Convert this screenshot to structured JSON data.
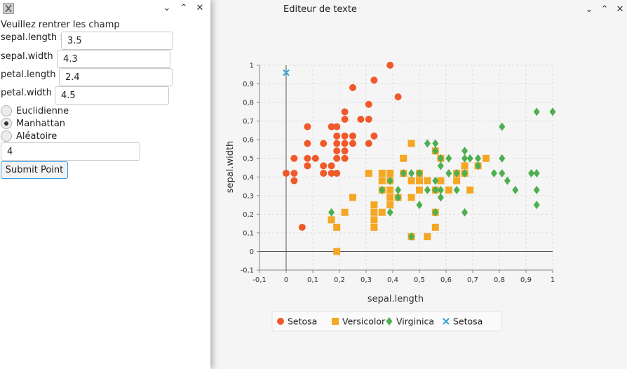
{
  "right_window": {
    "title": "Editeur de texte",
    "controls": {
      "minimize": "⌄",
      "maximize": "⌃",
      "close": "✕"
    }
  },
  "left_window": {
    "controls": {
      "minimize": "⌄",
      "maximize": "⌃",
      "close": "✕"
    },
    "prompt": "Veuillez rentrer les champ",
    "fields": [
      {
        "label": "sepal.length :",
        "value": "3.5"
      },
      {
        "label": "sepal.width :",
        "value": "4.3"
      },
      {
        "label": "petal.length :",
        "value": "2.4"
      },
      {
        "label": "petal.width :",
        "value": "4.5"
      }
    ],
    "distance_options": [
      {
        "label": "Euclidienne",
        "checked": false
      },
      {
        "label": "Manhattan",
        "checked": true
      },
      {
        "label": "Aléatoire",
        "checked": false
      }
    ],
    "k_value": "4",
    "submit_label": "Submit Point"
  },
  "chart_data": {
    "type": "scatter",
    "xlabel": "sepal.length",
    "ylabel": "sepal.width",
    "xlim": [
      -0.1,
      1.0
    ],
    "ylim": [
      -0.1,
      1.0
    ],
    "x_ticks": [
      "-0,1",
      "0",
      "0,1",
      "0,2",
      "0,3",
      "0,4",
      "0,5",
      "0,6",
      "0,7",
      "0,8",
      "0,9",
      "1"
    ],
    "y_ticks": [
      "-0,1",
      "0",
      "0,1",
      "0,2",
      "0,3",
      "0,4",
      "0,5",
      "0,6",
      "0,7",
      "0,8",
      "0,9",
      "1"
    ],
    "grid": true,
    "legend_position": "bottom",
    "series": [
      {
        "name": "Setosa",
        "marker": "circle",
        "color": "#f0592a",
        "points": [
          [
            0.0,
            0.42
          ],
          [
            0.03,
            0.42
          ],
          [
            0.03,
            0.38
          ],
          [
            0.03,
            0.5
          ],
          [
            0.06,
            0.13
          ],
          [
            0.08,
            0.67
          ],
          [
            0.08,
            0.58
          ],
          [
            0.08,
            0.5
          ],
          [
            0.08,
            0.46
          ],
          [
            0.11,
            0.5
          ],
          [
            0.14,
            0.58
          ],
          [
            0.14,
            0.46
          ],
          [
            0.14,
            0.42
          ],
          [
            0.17,
            0.67
          ],
          [
            0.17,
            0.46
          ],
          [
            0.17,
            0.42
          ],
          [
            0.19,
            0.67
          ],
          [
            0.19,
            0.62
          ],
          [
            0.19,
            0.58
          ],
          [
            0.19,
            0.54
          ],
          [
            0.19,
            0.5
          ],
          [
            0.19,
            0.42
          ],
          [
            0.22,
            0.75
          ],
          [
            0.22,
            0.71
          ],
          [
            0.22,
            0.62
          ],
          [
            0.22,
            0.58
          ],
          [
            0.22,
            0.54
          ],
          [
            0.22,
            0.5
          ],
          [
            0.25,
            0.88
          ],
          [
            0.25,
            0.62
          ],
          [
            0.25,
            0.58
          ],
          [
            0.28,
            0.71
          ],
          [
            0.31,
            0.79
          ],
          [
            0.31,
            0.71
          ],
          [
            0.31,
            0.58
          ],
          [
            0.33,
            0.92
          ],
          [
            0.33,
            0.62
          ],
          [
            0.39,
            1.0
          ],
          [
            0.42,
            0.83
          ]
        ]
      },
      {
        "name": "Versicolor",
        "marker": "square",
        "color": "#f5a623",
        "points": [
          [
            0.17,
            0.17
          ],
          [
            0.19,
            0.13
          ],
          [
            0.19,
            0.0
          ],
          [
            0.22,
            0.21
          ],
          [
            0.25,
            0.29
          ],
          [
            0.31,
            0.42
          ],
          [
            0.33,
            0.25
          ],
          [
            0.33,
            0.21
          ],
          [
            0.33,
            0.17
          ],
          [
            0.33,
            0.13
          ],
          [
            0.36,
            0.42
          ],
          [
            0.36,
            0.38
          ],
          [
            0.36,
            0.33
          ],
          [
            0.36,
            0.21
          ],
          [
            0.39,
            0.42
          ],
          [
            0.39,
            0.38
          ],
          [
            0.39,
            0.33
          ],
          [
            0.39,
            0.29
          ],
          [
            0.39,
            0.25
          ],
          [
            0.42,
            0.29
          ],
          [
            0.44,
            0.5
          ],
          [
            0.44,
            0.42
          ],
          [
            0.47,
            0.58
          ],
          [
            0.47,
            0.38
          ],
          [
            0.47,
            0.29
          ],
          [
            0.47,
            0.08
          ],
          [
            0.5,
            0.42
          ],
          [
            0.5,
            0.38
          ],
          [
            0.5,
            0.33
          ],
          [
            0.53,
            0.38
          ],
          [
            0.53,
            0.08
          ],
          [
            0.56,
            0.54
          ],
          [
            0.56,
            0.33
          ],
          [
            0.56,
            0.21
          ],
          [
            0.56,
            0.13
          ],
          [
            0.58,
            0.5
          ],
          [
            0.58,
            0.38
          ],
          [
            0.61,
            0.33
          ],
          [
            0.64,
            0.42
          ],
          [
            0.64,
            0.38
          ],
          [
            0.67,
            0.46
          ],
          [
            0.67,
            0.42
          ],
          [
            0.69,
            0.33
          ],
          [
            0.72,
            0.46
          ],
          [
            0.75,
            0.5
          ]
        ]
      },
      {
        "name": "Virginica",
        "marker": "diamond",
        "color": "#4caf50",
        "points": [
          [
            0.17,
            0.21
          ],
          [
            0.36,
            0.33
          ],
          [
            0.39,
            0.21
          ],
          [
            0.39,
            0.38
          ],
          [
            0.42,
            0.33
          ],
          [
            0.42,
            0.29
          ],
          [
            0.44,
            0.42
          ],
          [
            0.47,
            0.42
          ],
          [
            0.47,
            0.08
          ],
          [
            0.5,
            0.42
          ],
          [
            0.5,
            0.25
          ],
          [
            0.53,
            0.58
          ],
          [
            0.53,
            0.33
          ],
          [
            0.56,
            0.58
          ],
          [
            0.56,
            0.54
          ],
          [
            0.56,
            0.38
          ],
          [
            0.56,
            0.33
          ],
          [
            0.56,
            0.21
          ],
          [
            0.58,
            0.5
          ],
          [
            0.58,
            0.46
          ],
          [
            0.58,
            0.33
          ],
          [
            0.58,
            0.29
          ],
          [
            0.61,
            0.5
          ],
          [
            0.61,
            0.42
          ],
          [
            0.64,
            0.42
          ],
          [
            0.64,
            0.33
          ],
          [
            0.67,
            0.54
          ],
          [
            0.67,
            0.5
          ],
          [
            0.67,
            0.42
          ],
          [
            0.67,
            0.21
          ],
          [
            0.69,
            0.5
          ],
          [
            0.72,
            0.5
          ],
          [
            0.72,
            0.46
          ],
          [
            0.78,
            0.42
          ],
          [
            0.81,
            0.67
          ],
          [
            0.81,
            0.5
          ],
          [
            0.81,
            0.42
          ],
          [
            0.83,
            0.38
          ],
          [
            0.86,
            0.33
          ],
          [
            0.92,
            0.42
          ],
          [
            0.94,
            0.75
          ],
          [
            0.94,
            0.42
          ],
          [
            0.94,
            0.33
          ],
          [
            0.94,
            0.25
          ],
          [
            1.0,
            0.75
          ]
        ]
      },
      {
        "name": "Setosa",
        "marker": "cross",
        "color": "#3aa4d8",
        "points": [
          [
            0.0,
            0.96
          ]
        ]
      }
    ]
  }
}
